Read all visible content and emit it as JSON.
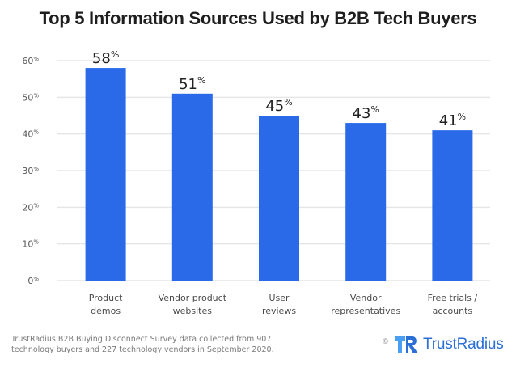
{
  "chart_data": {
    "type": "bar",
    "title": "Top 5 Information Sources Used by B2B Tech Buyers",
    "xlabel": "",
    "ylabel": "",
    "categories": [
      [
        "Product",
        "demos"
      ],
      [
        "Vendor product",
        "websites"
      ],
      [
        "User",
        "reviews"
      ],
      [
        "Vendor",
        "representatives"
      ],
      [
        "Free trials /",
        "accounts"
      ]
    ],
    "values": [
      58,
      51,
      45,
      43,
      41
    ],
    "data_labels": [
      "58",
      "51",
      "45",
      "43",
      "41"
    ],
    "unit": "%",
    "ylim": [
      0,
      60
    ],
    "yticks": [
      0,
      10,
      20,
      30,
      40,
      50,
      60
    ],
    "ytick_labels": [
      "0",
      "10",
      "20",
      "30",
      "40",
      "50",
      "60"
    ],
    "grid": true,
    "legend": "none",
    "bar_color": "#2a6ae9",
    "grid_color": "#e6e6e6"
  },
  "footnote": {
    "line1": "TrustRadius B2B Buying Disconnect Survey data collected from 907",
    "line2": "technology buyers and 227 technology vendors in September 2020."
  },
  "logo": {
    "copyright": "©",
    "brand": "TrustRadius",
    "brand_color": "#2b6fd6"
  }
}
